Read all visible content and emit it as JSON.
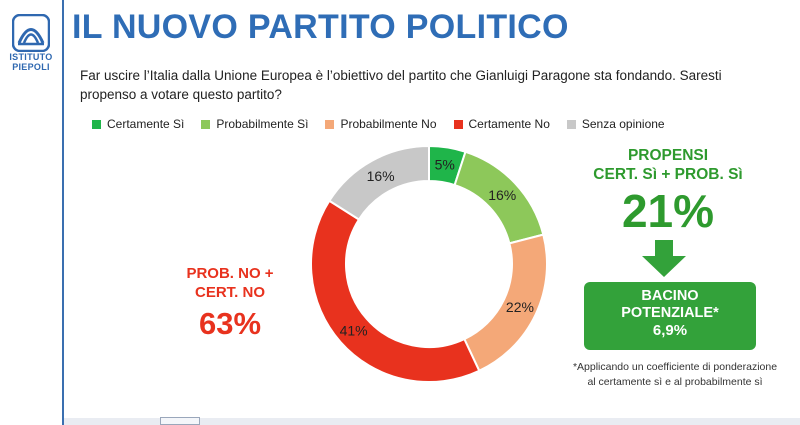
{
  "logo": {
    "line1": "ISTITUTO",
    "line2": "PIEPOLI"
  },
  "title": "IL NUOVO PARTITO POLITICO",
  "question": "Far uscire l’Italia dalla Unione Europea è l’obiettivo del partito che Gianluigi Paragone sta fondando. Saresti propenso a votare questo partito?",
  "colors": {
    "certamente_si": "#1fb54a",
    "probabilmente_si": "#8dc85a",
    "probabilmente_no": "#f4a878",
    "certamente_no": "#e8321e",
    "senza_opinione": "#c8c8c8",
    "accent_green": "#2e9a2e",
    "accent_red": "#e8321e",
    "title_blue": "#2f6db6"
  },
  "chart_data": {
    "type": "pie",
    "categories": [
      "Certamente Sì",
      "Probabilmente Sì",
      "Probabilmente No",
      "Certamente No",
      "Senza opinione"
    ],
    "values": [
      5,
      16,
      22,
      41,
      16
    ],
    "labels": [
      "5%",
      "16%",
      "22%",
      "41%",
      "16%"
    ],
    "donut": true,
    "legend_position": "top"
  },
  "left_callout": {
    "line1": "PROB. NO +",
    "line2": "CERT. NO",
    "value": "63%"
  },
  "right_callout": {
    "line1": "PROPENSI",
    "line2": "CERT. Sì + PROB. Sì",
    "value": "21%"
  },
  "bacino": {
    "line1": "BACINO",
    "line2": "POTENZIALE*",
    "value": "6,9%"
  },
  "footnote": "*Applicando un coefficiente di ponderazione al certamente sì e al probabilmente sì"
}
